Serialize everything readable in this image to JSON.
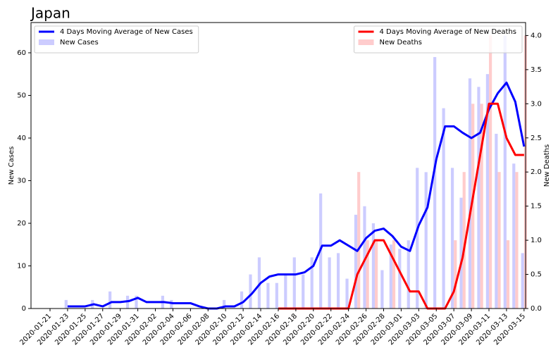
{
  "chart_data": {
    "type": "bar",
    "title": "Japan",
    "y_label": "New Cases",
    "y2_label": "New Deaths",
    "categories": [
      "2020-01-21",
      null,
      "2020-01-23",
      null,
      "2020-01-25",
      null,
      "2020-01-27",
      null,
      "2020-01-29",
      null,
      "2020-01-31",
      null,
      "2020-02-02",
      null,
      "2020-02-04",
      null,
      "2020-02-06",
      null,
      "2020-02-08",
      null,
      "2020-02-10",
      null,
      "2020-02-12",
      null,
      "2020-02-14",
      null,
      "2020-02-16",
      null,
      "2020-02-18",
      null,
      "2020-02-20",
      null,
      "2020-02-22",
      null,
      "2020-02-24",
      null,
      "2020-02-26",
      null,
      "2020-02-28",
      null,
      "2020-03-01",
      null,
      "2020-03-03",
      null,
      "2020-03-05",
      null,
      "2020-03-07",
      null,
      "2020-03-09",
      null,
      "2020-03-11",
      null,
      "2020-03-13",
      null,
      "2020-03-15"
    ],
    "series": [
      {
        "name": "4 Days Moving Average of New Cases",
        "type": "line",
        "axis": "y",
        "color": "#0000ff",
        "values": [
          null,
          null,
          0.5,
          0.5,
          0.5,
          1,
          0.5,
          1.5,
          1.5,
          1.75,
          2.5,
          1.5,
          1.5,
          1.5,
          1.25,
          1.25,
          1.25,
          0.5,
          0,
          0,
          0.5,
          0.5,
          1.5,
          3.5,
          6,
          7.5,
          8,
          8,
          8,
          8.5,
          10,
          14.75,
          14.75,
          16,
          14.75,
          13.5,
          16.5,
          18.25,
          18.75,
          17,
          14.5,
          13.5,
          19.5,
          23.75,
          35,
          42.75,
          42.75,
          41.25,
          40,
          41.25,
          46.75,
          50.5,
          53,
          48.5,
          38
        ]
      },
      {
        "name": "New Cases",
        "type": "bar",
        "axis": "y",
        "color": "#ccccff",
        "values": [
          0,
          0,
          2,
          0,
          0,
          2,
          0,
          4,
          0,
          3,
          3,
          0,
          0,
          3,
          2,
          0,
          0,
          0,
          0,
          0,
          2,
          0,
          4,
          8,
          12,
          6,
          6,
          8,
          12,
          8,
          12,
          27,
          12,
          13,
          7,
          22,
          24,
          20,
          9,
          15,
          14,
          16,
          33,
          32,
          59,
          47,
          33,
          26,
          54,
          52,
          55,
          41,
          64,
          34,
          13
        ]
      },
      {
        "name": "4 Days Moving Average of New Deaths",
        "type": "line",
        "axis": "y2",
        "color": "#ff0000",
        "values": [
          null,
          null,
          null,
          null,
          null,
          null,
          null,
          null,
          null,
          null,
          null,
          null,
          null,
          null,
          null,
          null,
          null,
          null,
          null,
          null,
          null,
          null,
          null,
          null,
          null,
          null,
          0,
          0,
          0,
          0,
          0,
          0,
          0,
          0,
          0,
          0.5,
          0.75,
          1,
          1,
          0.75,
          0.5,
          0.25,
          0.25,
          0,
          0,
          0,
          0.25,
          0.75,
          1.5,
          2.25,
          3,
          3,
          2.5,
          2.25,
          2.25
        ]
      },
      {
        "name": "New Deaths",
        "type": "bar",
        "axis": "y2",
        "color": "#ffcccc",
        "values": [
          0,
          0,
          0,
          0,
          0,
          0,
          0,
          0,
          0,
          0,
          0,
          0,
          0,
          0,
          0,
          0,
          0,
          0,
          0,
          0,
          0,
          0,
          0,
          0,
          0,
          0,
          0,
          0,
          0,
          0,
          0,
          0,
          0,
          0,
          0,
          2,
          1,
          1,
          0,
          1,
          0,
          0,
          0,
          0,
          0,
          0,
          1,
          2,
          3,
          3,
          4,
          2,
          1,
          2,
          4
        ]
      }
    ],
    "ylim": [
      0,
      67.1
    ],
    "yticks": [
      0,
      10,
      20,
      30,
      40,
      50,
      60
    ],
    "y2lim": [
      0,
      4.19
    ],
    "y2ticks": [
      {
        "value": 0,
        "label": "0.0"
      },
      {
        "value": 0.5,
        "label": "0.5"
      },
      {
        "value": 1,
        "label": "1.0"
      },
      {
        "value": 1.5,
        "label": "1.5"
      },
      {
        "value": 2,
        "label": "2.0"
      },
      {
        "value": 2.5,
        "label": "2.5"
      },
      {
        "value": 3,
        "label": "3.0"
      },
      {
        "value": 3.5,
        "label": "3.5"
      },
      {
        "value": 4,
        "label": "4.0"
      }
    ],
    "legends": [
      {
        "axis": "y",
        "loc": "upper left"
      },
      {
        "axis": "y2",
        "loc": "upper right"
      }
    ]
  }
}
